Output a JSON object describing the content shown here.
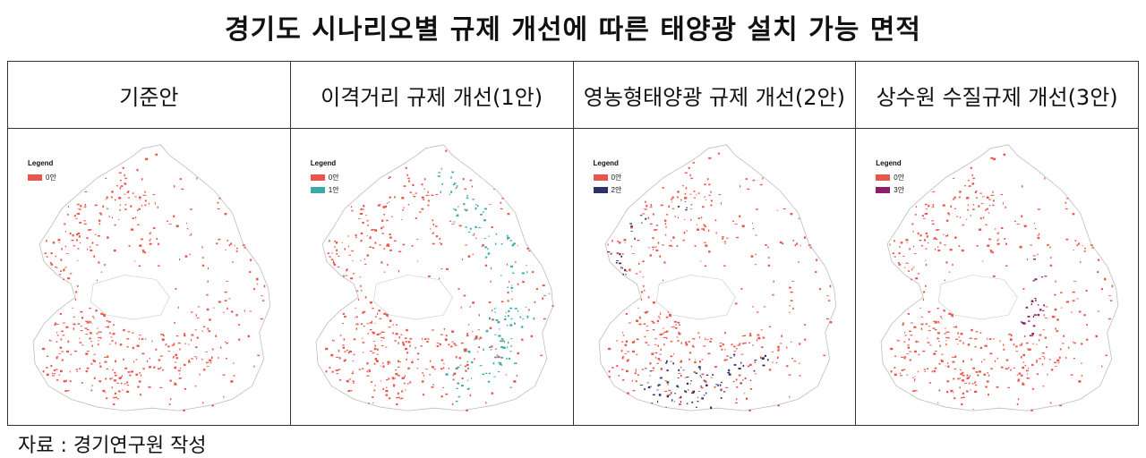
{
  "title": "경기도 시나리오별 규제 개선에 따른 태양광 설치 가능 면적",
  "source": "자료 : 경기연구원 작성",
  "colors": {
    "base": "#e8554a",
    "s1": "#3aaaa6",
    "s2": "#2f2f6e",
    "s3": "#8e1d6a"
  },
  "panels": [
    {
      "heading": "기준안",
      "legend_title": "Legend",
      "legend": [
        {
          "label": "0안",
          "color": "#e8554a"
        }
      ]
    },
    {
      "heading": "이격거리 규제 개선(1안)",
      "legend_title": "Legend",
      "legend": [
        {
          "label": "0안",
          "color": "#e8554a"
        },
        {
          "label": "1안",
          "color": "#3aaaa6"
        }
      ]
    },
    {
      "heading": "영농형태양광 규제 개선(2안)",
      "legend_title": "Legend",
      "legend": [
        {
          "label": "0안",
          "color": "#e8554a"
        },
        {
          "label": "2안",
          "color": "#2f2f6e"
        }
      ]
    },
    {
      "heading": "상수원 수질규제 개선(3안)",
      "legend_title": "Legend",
      "legend": [
        {
          "label": "0안",
          "color": "#e8554a"
        },
        {
          "label": "3안",
          "color": "#8e1d6a"
        }
      ]
    }
  ]
}
